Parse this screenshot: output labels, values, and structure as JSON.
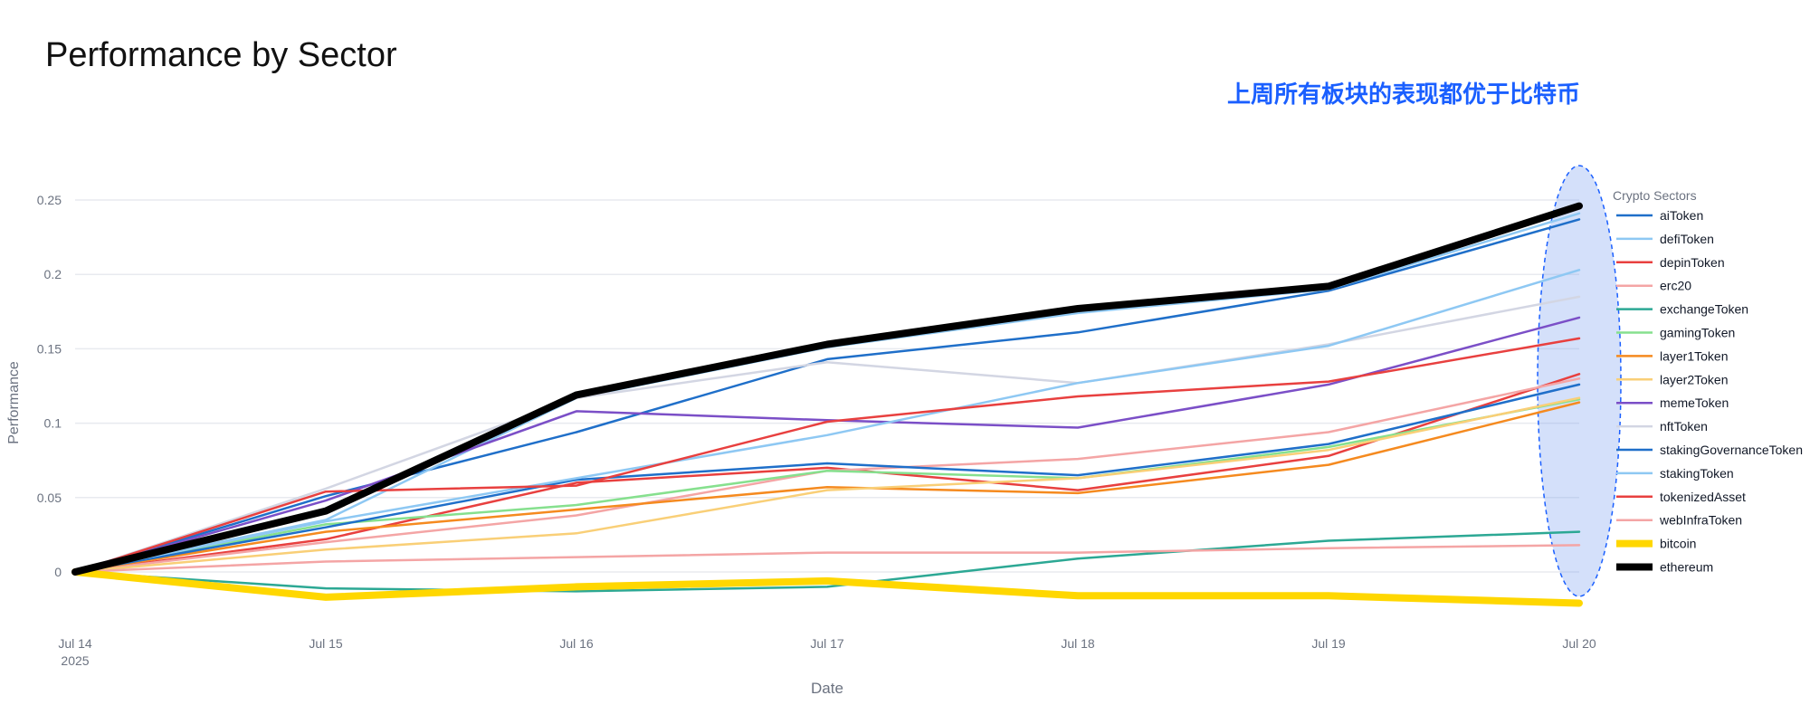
{
  "chart_data": {
    "type": "line",
    "title": "Performance by Sector",
    "xlabel": "Date",
    "ylabel": "Performance",
    "x": [
      "Jul 14",
      "Jul 15",
      "Jul 16",
      "Jul 17",
      "Jul 18",
      "Jul 19",
      "Jul 20"
    ],
    "x_year_label": "2025",
    "ylim": [
      -0.025,
      0.26
    ],
    "y_ticks": [
      0,
      0.05,
      0.1,
      0.15,
      0.2,
      0.25
    ],
    "y_tick_labels": [
      "0",
      "0.05",
      "0.1",
      "0.15",
      "0.2",
      "0.25"
    ],
    "grid": true,
    "legend_title": "Crypto Sectors",
    "legend_position": "right",
    "annotation": "上周所有板块的表现都优于比特币",
    "highlight": "ellipse around Jul 20 values",
    "series": [
      {
        "name": "aiToken",
        "color": "#1f6fc9",
        "width": 2.5,
        "values": [
          0,
          0.051,
          0.094,
          0.143,
          0.161,
          0.189,
          0.237
        ]
      },
      {
        "name": "defiToken",
        "color": "#8ec8f3",
        "width": 2.5,
        "values": [
          0,
          0.035,
          0.117,
          0.151,
          0.174,
          0.19,
          0.241
        ]
      },
      {
        "name": "depinToken",
        "color": "#e8403f",
        "width": 2.5,
        "values": [
          0,
          0.022,
          0.06,
          0.07,
          0.055,
          0.078,
          0.133
        ]
      },
      {
        "name": "erc20",
        "color": "#f4a5a5",
        "width": 2.5,
        "values": [
          0,
          0.02,
          0.038,
          0.068,
          0.076,
          0.094,
          0.13
        ]
      },
      {
        "name": "exchangeToken",
        "color": "#2ca894",
        "width": 2.5,
        "values": [
          0,
          -0.011,
          -0.013,
          -0.01,
          0.009,
          0.021,
          0.027
        ]
      },
      {
        "name": "gamingToken",
        "color": "#86e08e",
        "width": 2.5,
        "values": [
          0,
          0.032,
          0.045,
          0.068,
          0.063,
          0.084,
          0.116
        ]
      },
      {
        "name": "layer1Token",
        "color": "#f58a1f",
        "width": 2.5,
        "values": [
          0,
          0.027,
          0.042,
          0.057,
          0.053,
          0.072,
          0.114
        ]
      },
      {
        "name": "layer2Token",
        "color": "#f9cf77",
        "width": 2.5,
        "values": [
          0,
          0.015,
          0.026,
          0.055,
          0.063,
          0.082,
          0.117
        ]
      },
      {
        "name": "memeToken",
        "color": "#7b4fc7",
        "width": 2.5,
        "values": [
          0,
          0.048,
          0.108,
          0.102,
          0.097,
          0.126,
          0.171
        ]
      },
      {
        "name": "nftToken",
        "color": "#d3d6e3",
        "width": 2.5,
        "values": [
          0,
          0.056,
          0.117,
          0.141,
          0.127,
          0.153,
          0.185
        ]
      },
      {
        "name": "stakingGovernanceToken",
        "color": "#1f6fc9",
        "width": 2.5,
        "values": [
          0,
          0.03,
          0.062,
          0.073,
          0.065,
          0.086,
          0.126
        ]
      },
      {
        "name": "stakingToken",
        "color": "#8ec8f3",
        "width": 2.5,
        "values": [
          0,
          0.034,
          0.063,
          0.092,
          0.127,
          0.152,
          0.203
        ]
      },
      {
        "name": "tokenizedAsset",
        "color": "#e8403f",
        "width": 2.5,
        "values": [
          0,
          0.054,
          0.058,
          0.101,
          0.118,
          0.128,
          0.157
        ]
      },
      {
        "name": "webInfraToken",
        "color": "#f4a5a5",
        "width": 2.5,
        "values": [
          0,
          0.007,
          0.01,
          0.013,
          0.013,
          0.016,
          0.018
        ]
      },
      {
        "name": "bitcoin",
        "color": "#ffd700",
        "width": 8,
        "values": [
          0,
          -0.017,
          -0.01,
          -0.006,
          -0.016,
          -0.016,
          -0.021
        ]
      },
      {
        "name": "ethereum",
        "color": "#000000",
        "width": 8,
        "values": [
          0,
          0.041,
          0.119,
          0.153,
          0.177,
          0.192,
          0.246
        ]
      }
    ]
  }
}
